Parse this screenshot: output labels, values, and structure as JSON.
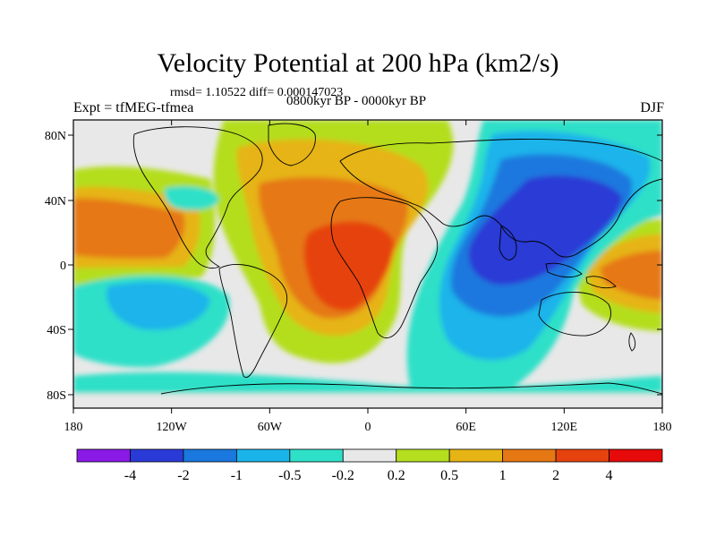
{
  "title": "Velocity Potential at 200 hPa (km2/s)",
  "stats": "rmsd= 1.10522  diff= 0.000147023",
  "experiment": "Expt = tfMEG-tfmea",
  "period": "0800kyr BP - 0000kyr BP",
  "season": "DJF",
  "lat_ticks": [
    "80N",
    "40N",
    "0",
    "40S",
    "80S"
  ],
  "lon_ticks": [
    "180",
    "120W",
    "60W",
    "0",
    "60E",
    "120E",
    "180"
  ],
  "colorbar": {
    "labels": [
      "-4",
      "-2",
      "-1",
      "-0.5",
      "-0.2",
      "0.2",
      "0.5",
      "1",
      "2",
      "4"
    ],
    "colors": [
      "#8a1ae6",
      "#2a3ad6",
      "#1a78de",
      "#1ab4ea",
      "#2ee0c8",
      "#e8e8e8",
      "#b4de1e",
      "#e6b414",
      "#e67814",
      "#e6420e",
      "#e60a0a"
    ]
  }
}
